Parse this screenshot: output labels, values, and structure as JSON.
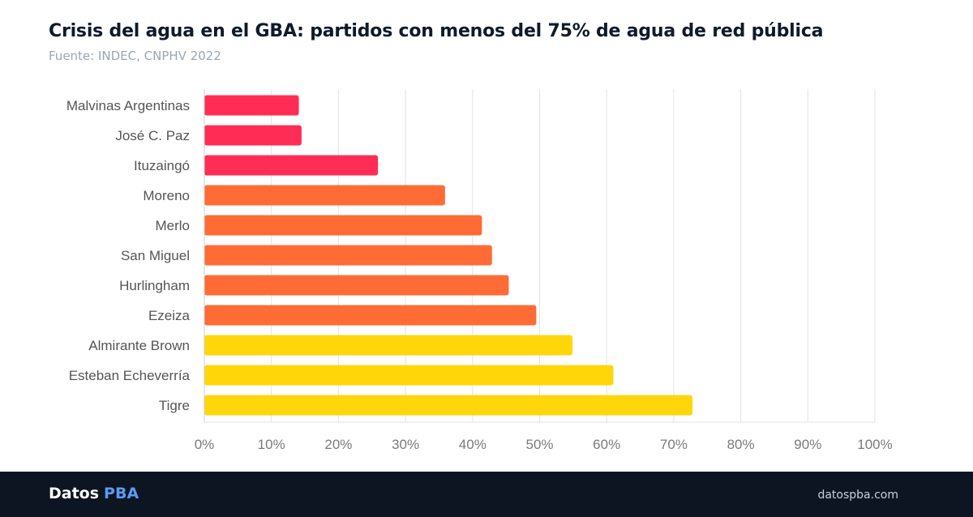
{
  "header": {
    "title": "Crisis del agua en el GBA: partidos con menos del 75% de agua de red pública",
    "subtitle": "Fuente: INDEC, CNPHV 2022"
  },
  "footer": {
    "brand_main": "Datos",
    "brand_accent": "PBA",
    "site": "datospba.com"
  },
  "chart_data": {
    "type": "bar",
    "orientation": "horizontal",
    "categories": [
      "Malvinas Argentinas",
      "José C. Paz",
      "Ituzaingó",
      "Moreno",
      "Merlo",
      "San Miguel",
      "Hurlingham",
      "Ezeiza",
      "Almirante Brown",
      "Esteban Echeverría",
      "Tigre"
    ],
    "values": [
      14.1,
      14.5,
      25.9,
      35.9,
      41.4,
      42.9,
      45.4,
      49.5,
      54.9,
      61.0,
      72.8
    ],
    "colors": [
      "#ff2d55",
      "#ff2d55",
      "#ff2d55",
      "#ff6b35",
      "#ff6b35",
      "#ff6b35",
      "#ff6b35",
      "#ff6b35",
      "#ffd60a",
      "#ffd60a",
      "#ffd60a"
    ],
    "xlim": [
      0,
      100
    ],
    "xticks": [
      "0%",
      "10%",
      "20%",
      "30%",
      "40%",
      "50%",
      "60%",
      "70%",
      "80%",
      "90%",
      "100%"
    ],
    "grid": true
  }
}
